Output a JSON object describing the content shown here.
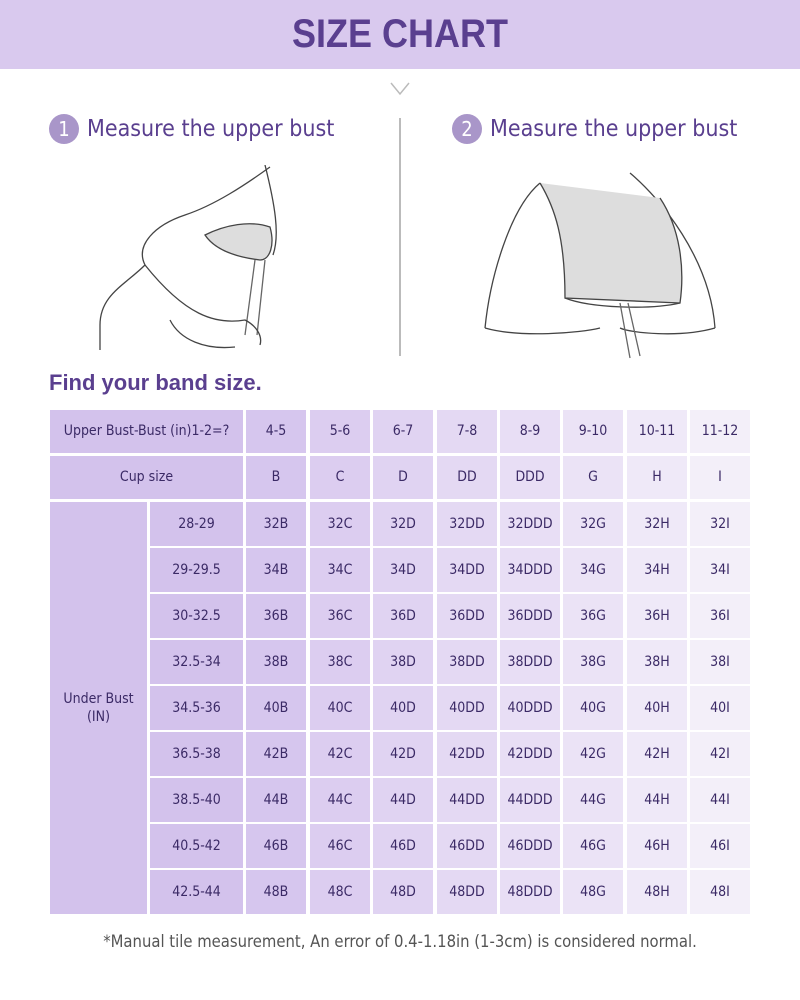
{
  "title": "SIZE CHART",
  "steps": [
    {
      "number": "1",
      "label": "Measure the upper bust"
    },
    {
      "number": "2",
      "label": "Measure the upper bust"
    }
  ],
  "section_title": "Find your band size.",
  "table": {
    "header_label": "Upper Bust-Bust (in)1-2=?",
    "differences": [
      "4-5",
      "5-6",
      "6-7",
      "7-8",
      "8-9",
      "9-10",
      "10-11",
      "11-12"
    ],
    "cup_label": "Cup size",
    "cups": [
      "B",
      "C",
      "D",
      "DD",
      "DDD",
      "G",
      "H",
      "I"
    ],
    "row_group_label": "Under Bust (IN)",
    "rows": [
      {
        "under_bust": "28-29",
        "sizes": [
          "32B",
          "32C",
          "32D",
          "32DD",
          "32DDD",
          "32G",
          "32H",
          "32I"
        ]
      },
      {
        "under_bust": "29-29.5",
        "sizes": [
          "34B",
          "34C",
          "34D",
          "34DD",
          "34DDD",
          "34G",
          "34H",
          "34I"
        ]
      },
      {
        "under_bust": "30-32.5",
        "sizes": [
          "36B",
          "36C",
          "36D",
          "36DD",
          "36DDD",
          "36G",
          "36H",
          "36I"
        ]
      },
      {
        "under_bust": "32.5-34",
        "sizes": [
          "38B",
          "38C",
          "38D",
          "38DD",
          "38DDD",
          "38G",
          "38H",
          "38I"
        ]
      },
      {
        "under_bust": "34.5-36",
        "sizes": [
          "40B",
          "40C",
          "40D",
          "40DD",
          "40DDD",
          "40G",
          "40H",
          "40I"
        ]
      },
      {
        "under_bust": "36.5-38",
        "sizes": [
          "42B",
          "42C",
          "42D",
          "42DD",
          "42DDD",
          "42G",
          "42H",
          "42I"
        ]
      },
      {
        "under_bust": "38.5-40",
        "sizes": [
          "44B",
          "44C",
          "44D",
          "44DD",
          "44DDD",
          "44G",
          "44H",
          "44I"
        ]
      },
      {
        "under_bust": "40.5-42",
        "sizes": [
          "46B",
          "46C",
          "46D",
          "46DD",
          "46DDD",
          "46G",
          "46H",
          "46I"
        ]
      },
      {
        "under_bust": "42.5-44",
        "sizes": [
          "48B",
          "48C",
          "48D",
          "48DD",
          "48DDD",
          "48G",
          "48H",
          "48I"
        ]
      }
    ]
  },
  "note": "*Manual tile measurement, An error of 0.4-1.18in (1-3cm) is considered normal.",
  "colors": {
    "banner": "#d9c9ee",
    "title": "#5a3f8f",
    "col_start": "#d4c4ec",
    "col_end": "#f4f0fa"
  }
}
